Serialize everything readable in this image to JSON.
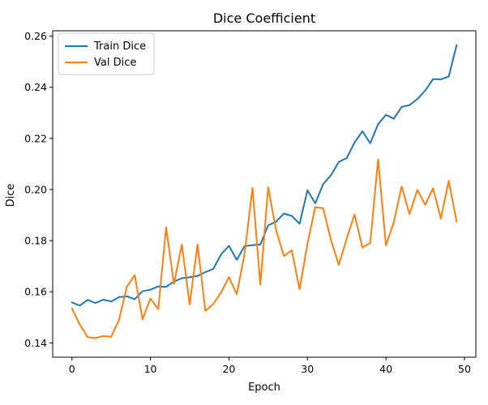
{
  "chart_data": {
    "type": "line",
    "title": "Dice Coefficient",
    "xlabel": "Epoch",
    "ylabel": "Dice",
    "xlim": [
      -2.45,
      51.45
    ],
    "ylim": [
      0.1344,
      0.2621
    ],
    "xticks": [
      0,
      10,
      20,
      30,
      40,
      50
    ],
    "yticks": [
      0.14,
      0.16,
      0.18,
      0.2,
      0.22,
      0.24,
      0.26
    ],
    "ytick_labels": [
      "0.14",
      "0.16",
      "0.18",
      "0.20",
      "0.22",
      "0.24",
      "0.26"
    ],
    "grid": false,
    "legend_position": "top-left",
    "x": [
      0,
      1,
      2,
      3,
      4,
      5,
      6,
      7,
      8,
      9,
      10,
      11,
      12,
      13,
      14,
      15,
      16,
      17,
      18,
      19,
      20,
      21,
      22,
      23,
      24,
      25,
      26,
      27,
      28,
      29,
      30,
      31,
      32,
      33,
      34,
      35,
      36,
      37,
      38,
      39,
      40,
      41,
      42,
      43,
      44,
      45,
      46,
      47,
      48,
      49
    ],
    "series": [
      {
        "name": "Train Dice",
        "color": "#1f77b4",
        "values": [
          0.1558,
          0.1546,
          0.1568,
          0.1556,
          0.1569,
          0.1562,
          0.1579,
          0.1582,
          0.1571,
          0.1602,
          0.1608,
          0.1621,
          0.1619,
          0.164,
          0.1653,
          0.1657,
          0.1662,
          0.1677,
          0.1689,
          0.1746,
          0.178,
          0.1725,
          0.1779,
          0.1782,
          0.1785,
          0.186,
          0.1874,
          0.1906,
          0.1897,
          0.1866,
          0.1997,
          0.1946,
          0.2021,
          0.2056,
          0.2108,
          0.2123,
          0.2184,
          0.2228,
          0.2181,
          0.2256,
          0.2292,
          0.2277,
          0.2323,
          0.233,
          0.2354,
          0.2387,
          0.2432,
          0.2431,
          0.2442,
          0.2564
        ]
      },
      {
        "name": "Val Dice",
        "color": "#ff7f0e",
        "values": [
          0.1535,
          0.1472,
          0.1423,
          0.1419,
          0.1427,
          0.1424,
          0.149,
          0.162,
          0.1665,
          0.1492,
          0.1574,
          0.1532,
          0.1852,
          0.163,
          0.1785,
          0.155,
          0.1785,
          0.1525,
          0.1552,
          0.1597,
          0.1658,
          0.159,
          0.175,
          0.2006,
          0.1628,
          0.2009,
          0.1842,
          0.174,
          0.1762,
          0.161,
          0.1787,
          0.1931,
          0.1927,
          0.1802,
          0.1705,
          0.1808,
          0.1903,
          0.1773,
          0.1791,
          0.2118,
          0.1781,
          0.1872,
          0.2012,
          0.1904,
          0.1998,
          0.194,
          0.2005,
          0.1886,
          0.2034,
          0.1875
        ]
      }
    ]
  }
}
